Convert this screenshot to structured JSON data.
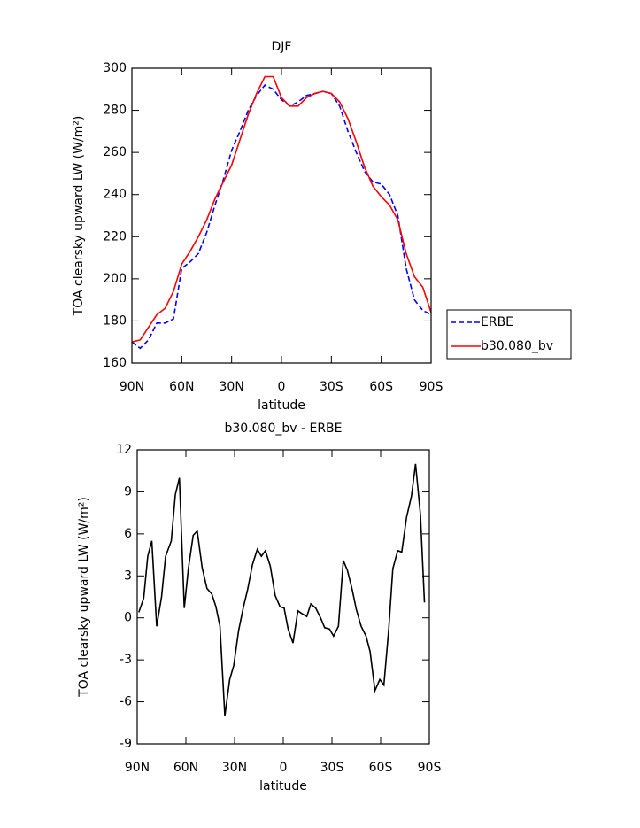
{
  "chart_data": [
    {
      "type": "line",
      "title": "DJF",
      "x_label": "latitude",
      "y_label": "TOA clearsky upward LW (W/m²)",
      "x": [
        90,
        85,
        80,
        75,
        70,
        65,
        60,
        55,
        50,
        45,
        40,
        35,
        30,
        25,
        20,
        15,
        10,
        5,
        0,
        -5,
        -10,
        -15,
        -20,
        -25,
        -30,
        -35,
        -40,
        -45,
        -50,
        -55,
        -60,
        -65,
        -70,
        -75,
        -80,
        -85,
        -90
      ],
      "series": [
        {
          "name": "ERBE",
          "color": "#0000ff",
          "dashed": true,
          "values": [
            170,
            167,
            171,
            179,
            179,
            181,
            205,
            208,
            212,
            222,
            235,
            247,
            261,
            270,
            280,
            287,
            292,
            290,
            285,
            282,
            284,
            287,
            288,
            289,
            288,
            282,
            270,
            260,
            251,
            246,
            245,
            240,
            230,
            205,
            190,
            185,
            183
          ]
        },
        {
          "name": "b30.080_bv",
          "color": "#ff0000",
          "dashed": false,
          "values": [
            170,
            171,
            177,
            183,
            186,
            194,
            207,
            213,
            220,
            228,
            238,
            246,
            254,
            266,
            278,
            288,
            296,
            296,
            286,
            282,
            282,
            286,
            288,
            289,
            288,
            284,
            276,
            265,
            253,
            244,
            239,
            235,
            228,
            212,
            201,
            196,
            184
          ]
        }
      ],
      "xlim": [
        90,
        -90
      ],
      "xticks": [
        {
          "value": 90,
          "label": "90N"
        },
        {
          "value": 60,
          "label": "60N"
        },
        {
          "value": 30,
          "label": "30N"
        },
        0,
        {
          "value": -30,
          "label": "30S"
        },
        {
          "value": -60,
          "label": "60S"
        },
        {
          "value": -90,
          "label": "90S"
        }
      ],
      "ylim": [
        160,
        300
      ],
      "yticks": [
        160,
        180,
        200,
        220,
        240,
        260,
        280,
        300
      ],
      "legend": "right"
    },
    {
      "type": "line",
      "title": "b30.080_bv - ERBE",
      "x_label": "latitude",
      "y_label": "TOA clearsky upward LW (W/m²)",
      "x": [
        89,
        86,
        83.5,
        81,
        78,
        75,
        72.5,
        69,
        66.5,
        64,
        61,
        58.5,
        55.5,
        53,
        50,
        47,
        44,
        41.5,
        39,
        36,
        33,
        30.5,
        27.5,
        24.5,
        22,
        19,
        16,
        13.5,
        11,
        8,
        5,
        2,
        -0.5,
        -3,
        -6,
        -9,
        -11.5,
        -14.5,
        -17,
        -20,
        -23,
        -25.5,
        -28.5,
        -31,
        -34,
        -37,
        -39.5,
        -42.5,
        -45,
        -48,
        -51,
        -53.5,
        -56.5,
        -59.5,
        -62,
        -65,
        -67.5,
        -70.5,
        -73,
        -76,
        -79,
        -81.5,
        -84.5,
        -87
      ],
      "color": "#000000",
      "values": [
        0.4,
        1.4,
        4.4,
        5.5,
        -0.6,
        1.5,
        4.4,
        5.5,
        8.8,
        10.0,
        0.7,
        3.5,
        5.9,
        6.2,
        3.6,
        2.1,
        1.7,
        0.8,
        -0.6,
        -7.0,
        -4.4,
        -3.4,
        -0.9,
        0.8,
        2.0,
        3.8,
        4.9,
        4.4,
        4.8,
        3.7,
        1.6,
        0.8,
        0.7,
        -0.8,
        -1.8,
        0.5,
        0.3,
        0.1,
        1.0,
        0.7,
        0,
        -0.7,
        -0.8,
        -1.3,
        -0.6,
        4.1,
        3.4,
        2.0,
        0.6,
        -0.6,
        -1.3,
        -2.4,
        -5.2,
        -4.4,
        -4.8,
        -0.8,
        3.5,
        4.8,
        4.7,
        7.2,
        8.7,
        11.0,
        7.4,
        1.1
      ],
      "xlim": [
        90,
        -90
      ],
      "xticks": [
        {
          "value": 90,
          "label": "90N"
        },
        {
          "value": 60,
          "label": "60N"
        },
        {
          "value": 30,
          "label": "30N"
        },
        0,
        {
          "value": -30,
          "label": "30S"
        },
        {
          "value": -60,
          "label": "60S"
        },
        {
          "value": -90,
          "label": "90S"
        }
      ],
      "ylim": [
        -9,
        12
      ],
      "yticks": [
        -9,
        -6,
        -3,
        0,
        3,
        6,
        9,
        12
      ]
    }
  ]
}
